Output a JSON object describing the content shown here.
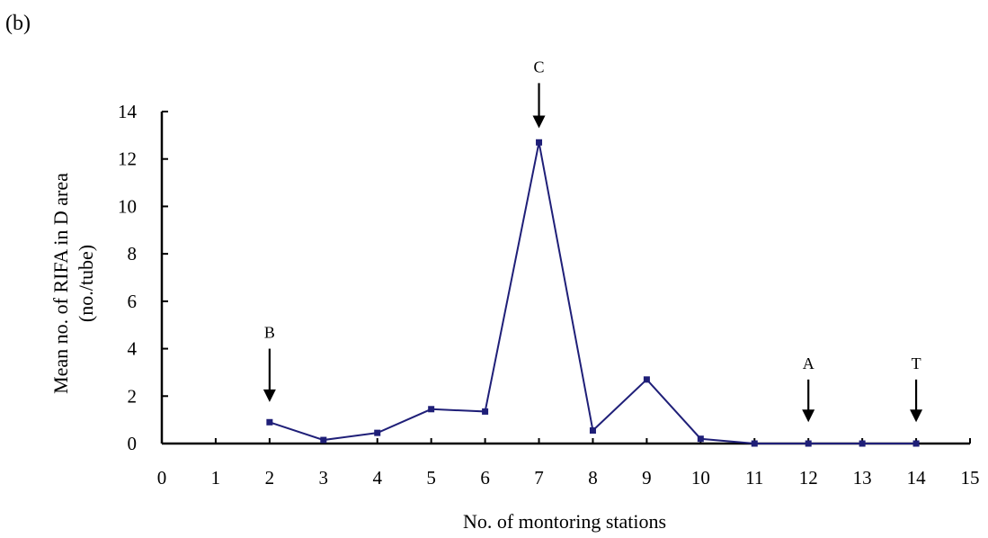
{
  "chart_data": {
    "type": "line",
    "panel_label": "(b)",
    "xlabel": "No. of montoring stations",
    "ylabel_line1": "Mean no. of RIFA in D area",
    "ylabel_line2": "(no./tube)",
    "xlim": [
      0,
      15
    ],
    "ylim": [
      0,
      14
    ],
    "xticks": [
      0,
      1,
      2,
      3,
      4,
      5,
      6,
      7,
      8,
      9,
      10,
      11,
      12,
      13,
      14,
      15
    ],
    "yticks": [
      0,
      2,
      4,
      6,
      8,
      10,
      12,
      14
    ],
    "grid": false,
    "line_color": "#1f1f78",
    "series": [
      {
        "x": [
          2,
          3,
          4,
          5,
          6,
          7,
          8,
          9,
          10,
          11,
          12,
          13,
          14
        ],
        "y": [
          0.9,
          0.15,
          0.45,
          1.45,
          1.35,
          12.7,
          0.55,
          2.7,
          0.2,
          0.0,
          0.0,
          0.0,
          0.0
        ]
      }
    ],
    "annotations": [
      {
        "label": "B",
        "x": 2,
        "arrow": "down",
        "y_top": 4.0,
        "y_tip": 1.75
      },
      {
        "label": "C",
        "x": 7,
        "arrow": "down",
        "y_top": 15.2,
        "y_tip": 13.3
      },
      {
        "label": "A",
        "x": 12,
        "arrow": "down",
        "y_top": 2.7,
        "y_tip": 0.9
      },
      {
        "label": "T",
        "x": 14,
        "arrow": "down",
        "y_top": 2.7,
        "y_tip": 0.9
      }
    ]
  }
}
